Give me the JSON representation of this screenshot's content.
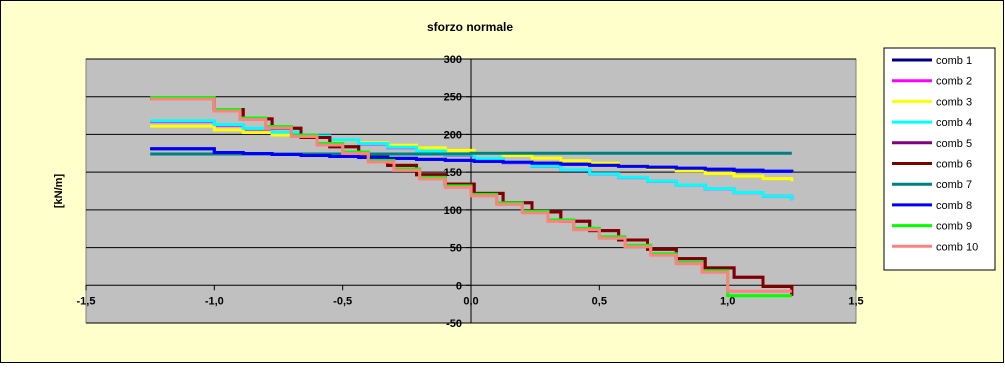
{
  "chart_data": {
    "type": "line",
    "title": "sforzo normale",
    "xlabel": "",
    "ylabel": "[kN/m]",
    "xlim": [
      -1.5,
      1.5
    ],
    "ylim": [
      -50,
      300
    ],
    "x_ticks": [
      -1.5,
      -1.0,
      -0.5,
      0.0,
      0.5,
      1.0,
      1.5
    ],
    "x_tick_labels": [
      "-1,5",
      "-1,0",
      "-0,5",
      "0,0",
      "0,5",
      "1,0",
      "1,5"
    ],
    "y_ticks": [
      -50,
      0,
      50,
      100,
      150,
      200,
      250,
      300
    ],
    "y_tick_labels": [
      "-50",
      "0",
      "50",
      "100",
      "150",
      "200",
      "250",
      "300"
    ],
    "grid": true,
    "legend_position": "right",
    "colors": {
      "page_background": "#ffffcc",
      "plot_background": "#c0c0c0",
      "gridline": "#000000",
      "frame": "#808080"
    },
    "series": [
      {
        "name": "comb 1",
        "color": "#000080",
        "x": [
          -1.25,
          -1.0,
          -1.0,
          1.25
        ],
        "y": [
          181,
          181,
          176,
          150
        ],
        "step": true
      },
      {
        "name": "comb 2",
        "color": "#ff00ff",
        "x": [
          -1.25,
          -1.0,
          -1.0,
          1.25
        ],
        "y": [
          217,
          217,
          212,
          113
        ],
        "step": true
      },
      {
        "name": "comb 3",
        "color": "#ffff00",
        "x": [
          -1.25,
          -1.0,
          -1.0,
          1.25
        ],
        "y": [
          211,
          211,
          206,
          138
        ],
        "step": true
      },
      {
        "name": "comb 4",
        "color": "#00ffff",
        "x": [
          -1.25,
          -1.0,
          -1.0,
          1.25
        ],
        "y": [
          218,
          218,
          213,
          113
        ],
        "step": true
      },
      {
        "name": "comb 5",
        "color": "#800080",
        "x": [
          -1.25,
          -1.0,
          -1.0,
          1.25
        ],
        "y": [
          248,
          248,
          233,
          -14
        ],
        "step": true
      },
      {
        "name": "comb 6",
        "color": "#800000",
        "x": [
          -1.25,
          -1.0,
          -1.0,
          1.25
        ],
        "y": [
          248,
          248,
          233,
          -14
        ],
        "step": true
      },
      {
        "name": "comb 7",
        "color": "#008080",
        "x": [
          -1.25,
          0.0,
          0.0,
          1.25
        ],
        "y": [
          174,
          174,
          175,
          175
        ],
        "step": true
      },
      {
        "name": "comb 8",
        "color": "#0000ff",
        "x": [
          -1.25,
          -1.0,
          -1.0,
          1.25
        ],
        "y": [
          181,
          181,
          176,
          150
        ],
        "step": true
      },
      {
        "name": "comb 9",
        "color": "#00ff00",
        "x": [
          -1.25,
          -1.0,
          -1.0,
          1.0,
          1.0,
          1.25
        ],
        "y": [
          249,
          249,
          233,
          8,
          -14,
          -14
        ],
        "step": true
      },
      {
        "name": "comb 10",
        "color": "#ff8080",
        "x": [
          -1.25,
          -1.0,
          -1.0,
          1.0,
          1.0,
          1.25
        ],
        "y": [
          247,
          247,
          231,
          6,
          -8,
          -8
        ],
        "step": true
      }
    ]
  }
}
